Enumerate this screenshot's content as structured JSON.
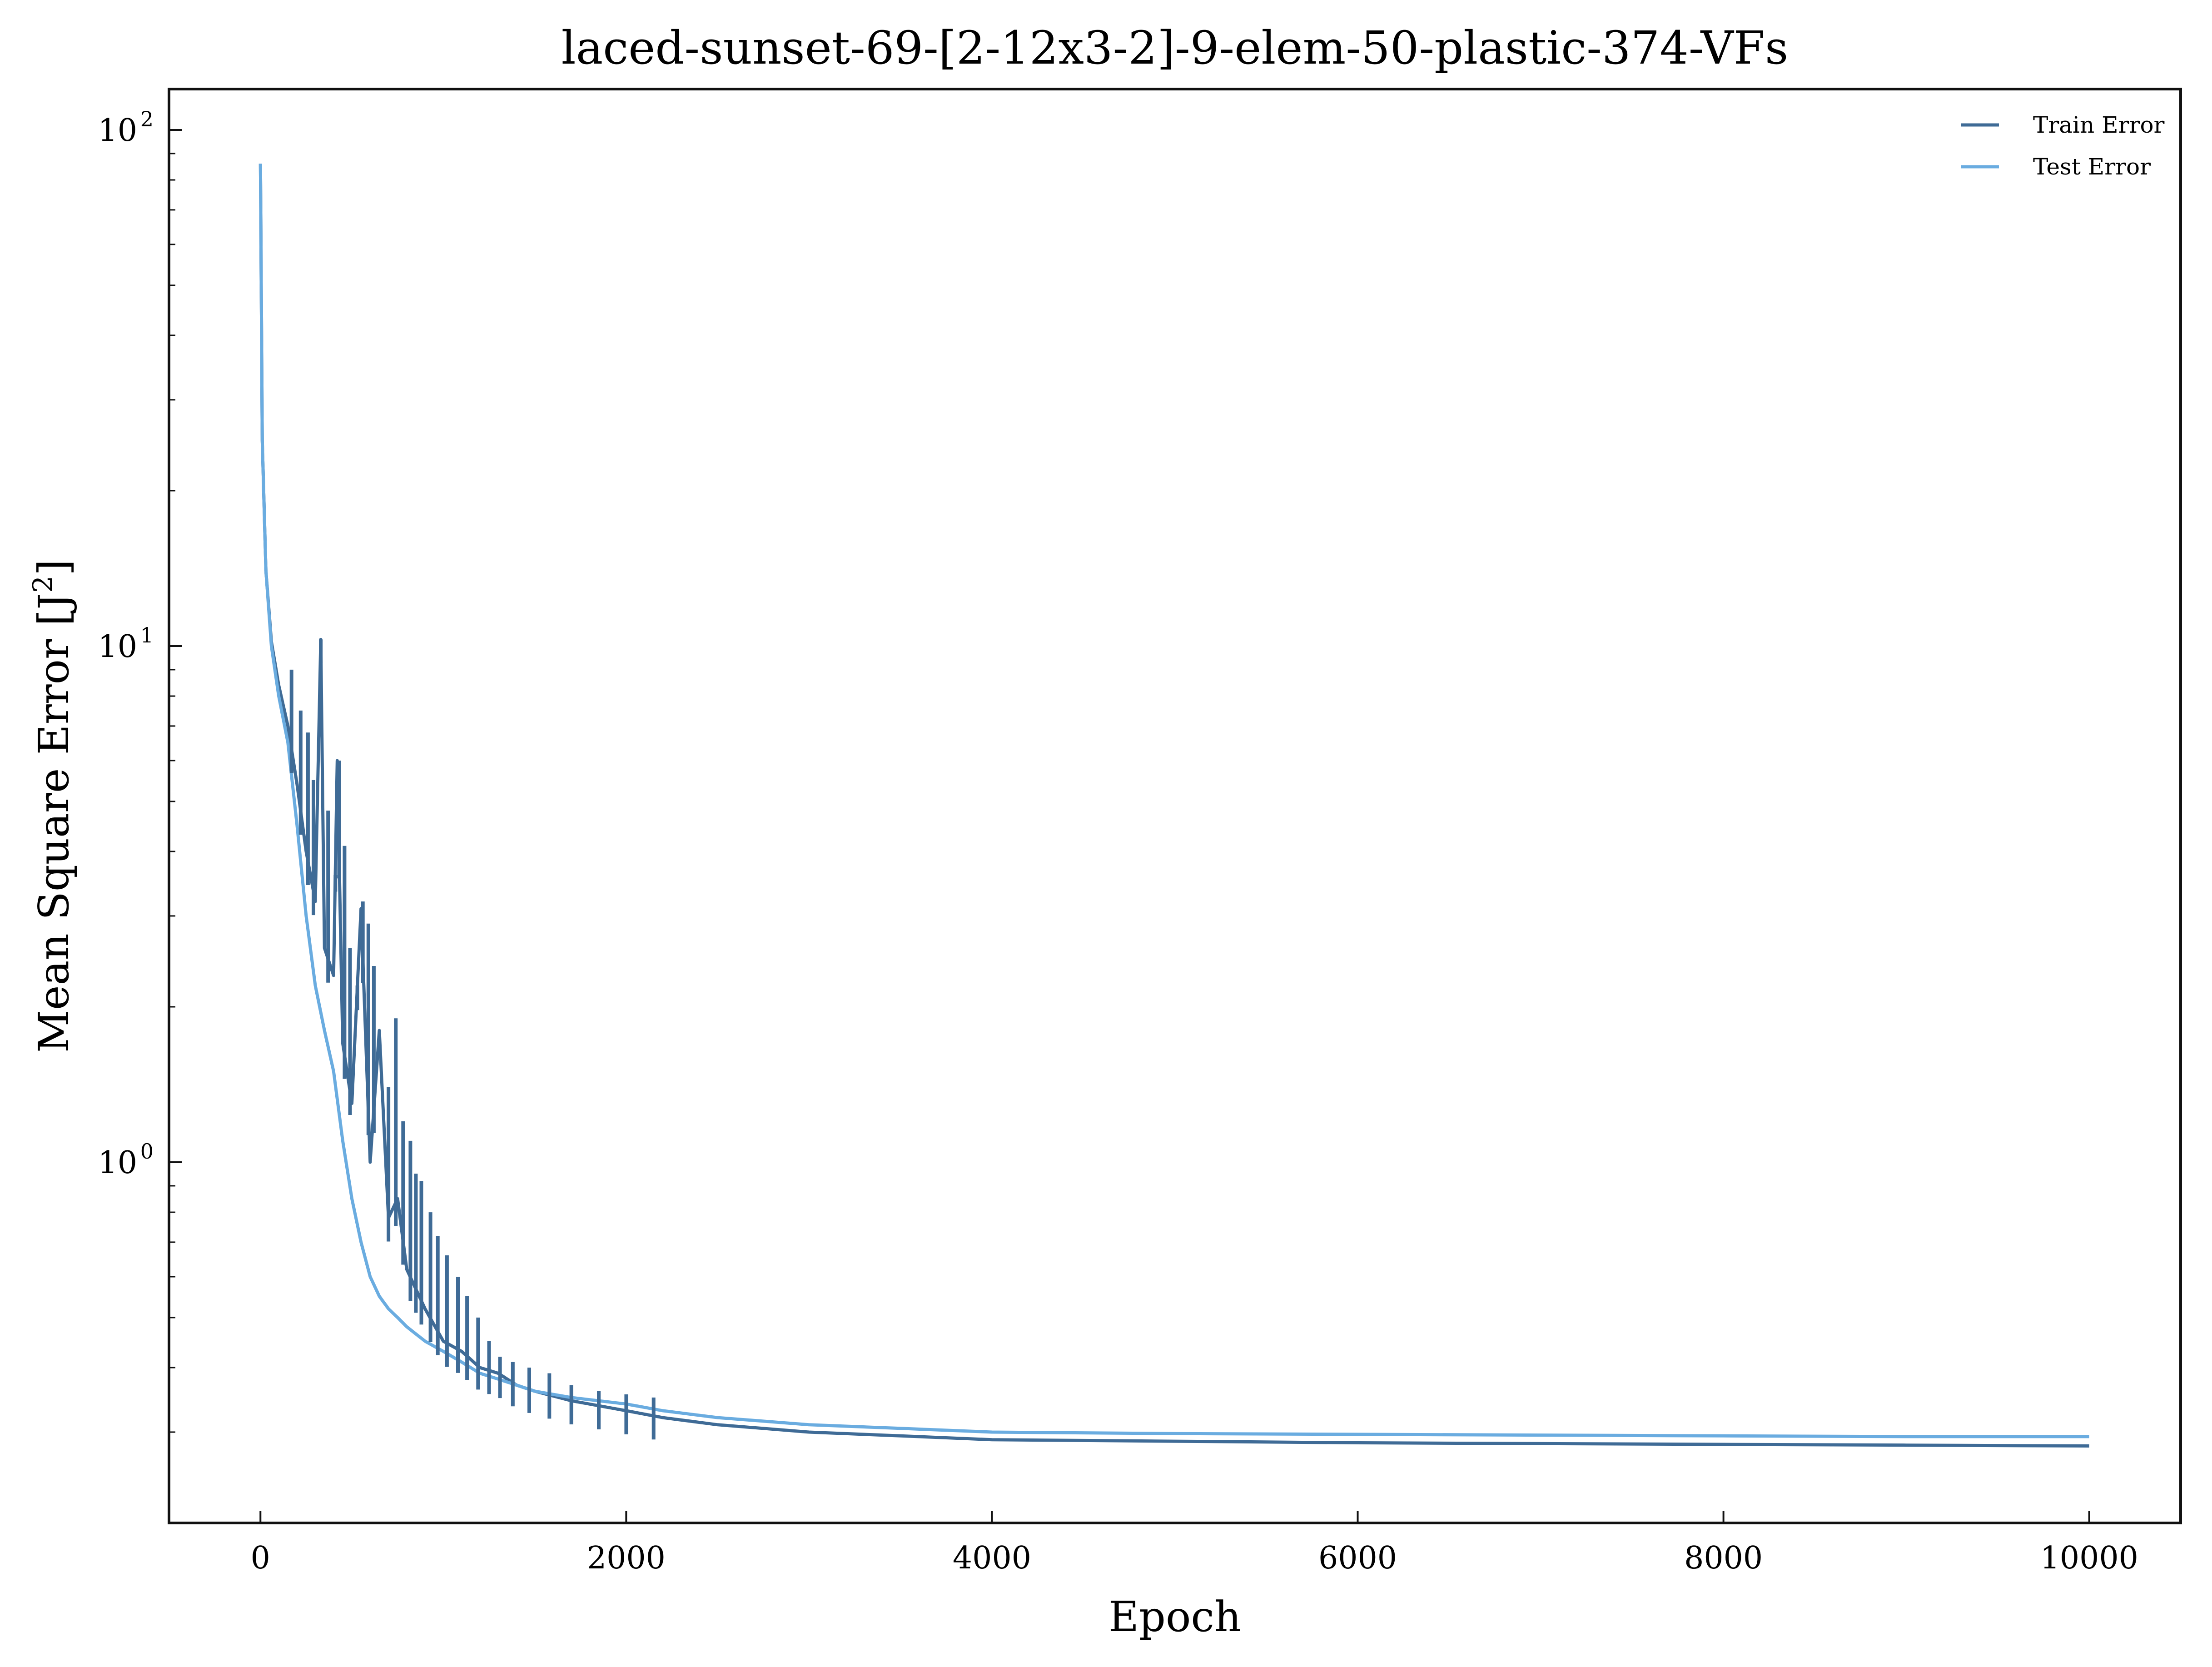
{
  "chart_data": {
    "type": "line",
    "title": "laced-sunset-69-[2-12x3-2]-9-elem-50-plastic-374-VFs",
    "xlabel": "Epoch",
    "ylabel_main": "Mean Square Error [J",
    "ylabel_sup": "2",
    "ylabel_close": "]",
    "xlim": [
      -500,
      10500
    ],
    "ylim": [
      0.2,
      120
    ],
    "yscale": "log",
    "grid": false,
    "legend_position": "top-right",
    "x_ticks": [
      {
        "value": 0,
        "label": "0"
      },
      {
        "value": 2000,
        "label": "2000"
      },
      {
        "value": 4000,
        "label": "4000"
      },
      {
        "value": 6000,
        "label": "6000"
      },
      {
        "value": 8000,
        "label": "8000"
      },
      {
        "value": 10000,
        "label": "10000"
      }
    ],
    "y_ticks": [
      {
        "value": 1,
        "base": "10",
        "exp": "0"
      },
      {
        "value": 10,
        "base": "10",
        "exp": "1"
      },
      {
        "value": 100,
        "base": "10",
        "exp": "2"
      }
    ],
    "series": [
      {
        "name": "Train Error",
        "color": "#3f6b96",
        "x": [
          0,
          10,
          30,
          60,
          100,
          150,
          200,
          250,
          300,
          330,
          350,
          400,
          420,
          450,
          500,
          550,
          600,
          650,
          700,
          750,
          800,
          900,
          1000,
          1100,
          1200,
          1300,
          1400,
          1500,
          1700,
          2000,
          2200,
          2500,
          3000,
          3500,
          4000,
          5000,
          6000,
          7000,
          8000,
          9000,
          10000
        ],
        "y": [
          86,
          25,
          14,
          10.2,
          8.4,
          7.0,
          5.4,
          4.0,
          3.2,
          10.3,
          2.6,
          2.3,
          6.0,
          1.7,
          1.3,
          3.1,
          1.0,
          1.8,
          0.78,
          0.85,
          0.62,
          0.52,
          0.45,
          0.43,
          0.4,
          0.39,
          0.37,
          0.36,
          0.345,
          0.33,
          0.32,
          0.31,
          0.3,
          0.295,
          0.29,
          0.288,
          0.286,
          0.285,
          0.284,
          0.283,
          0.282
        ]
      },
      {
        "name": "Test Error",
        "color": "#6aace0",
        "x": [
          0,
          10,
          30,
          60,
          100,
          150,
          200,
          250,
          300,
          350,
          400,
          450,
          500,
          550,
          600,
          650,
          700,
          750,
          800,
          900,
          1000,
          1100,
          1200,
          1300,
          1400,
          1500,
          1700,
          2000,
          2200,
          2500,
          3000,
          3500,
          4000,
          5000,
          6000,
          7000,
          8000,
          9000,
          10000
        ],
        "y": [
          86,
          25,
          14,
          10.0,
          8.0,
          6.5,
          4.5,
          3.0,
          2.2,
          1.8,
          1.5,
          1.1,
          0.85,
          0.7,
          0.6,
          0.55,
          0.52,
          0.5,
          0.48,
          0.45,
          0.43,
          0.41,
          0.39,
          0.38,
          0.37,
          0.36,
          0.35,
          0.34,
          0.33,
          0.32,
          0.31,
          0.305,
          0.3,
          0.298,
          0.297,
          0.296,
          0.295,
          0.294,
          0.294
        ]
      }
    ],
    "train_spikes": [
      {
        "x": 170,
        "y": 9.0
      },
      {
        "x": 220,
        "y": 7.5
      },
      {
        "x": 260,
        "y": 6.8
      },
      {
        "x": 290,
        "y": 5.5
      },
      {
        "x": 330,
        "y": 10.3
      },
      {
        "x": 370,
        "y": 4.8
      },
      {
        "x": 410,
        "y": 3.6
      },
      {
        "x": 430,
        "y": 6.0
      },
      {
        "x": 460,
        "y": 4.1
      },
      {
        "x": 490,
        "y": 2.6
      },
      {
        "x": 530,
        "y": 2.2
      },
      {
        "x": 560,
        "y": 3.2
      },
      {
        "x": 590,
        "y": 2.9
      },
      {
        "x": 620,
        "y": 2.4
      },
      {
        "x": 650,
        "y": 1.6
      },
      {
        "x": 700,
        "y": 1.4
      },
      {
        "x": 740,
        "y": 1.9
      },
      {
        "x": 780,
        "y": 1.2
      },
      {
        "x": 820,
        "y": 1.1
      },
      {
        "x": 850,
        "y": 0.95
      },
      {
        "x": 880,
        "y": 0.92
      },
      {
        "x": 930,
        "y": 0.8
      },
      {
        "x": 970,
        "y": 0.72
      },
      {
        "x": 1020,
        "y": 0.66
      },
      {
        "x": 1080,
        "y": 0.6
      },
      {
        "x": 1130,
        "y": 0.55
      },
      {
        "x": 1190,
        "y": 0.5
      },
      {
        "x": 1250,
        "y": 0.45
      },
      {
        "x": 1310,
        "y": 0.42
      },
      {
        "x": 1380,
        "y": 0.41
      },
      {
        "x": 1470,
        "y": 0.4
      },
      {
        "x": 1580,
        "y": 0.39
      },
      {
        "x": 1700,
        "y": 0.37
      },
      {
        "x": 1850,
        "y": 0.36
      },
      {
        "x": 2000,
        "y": 0.355
      },
      {
        "x": 2150,
        "y": 0.35
      }
    ]
  }
}
